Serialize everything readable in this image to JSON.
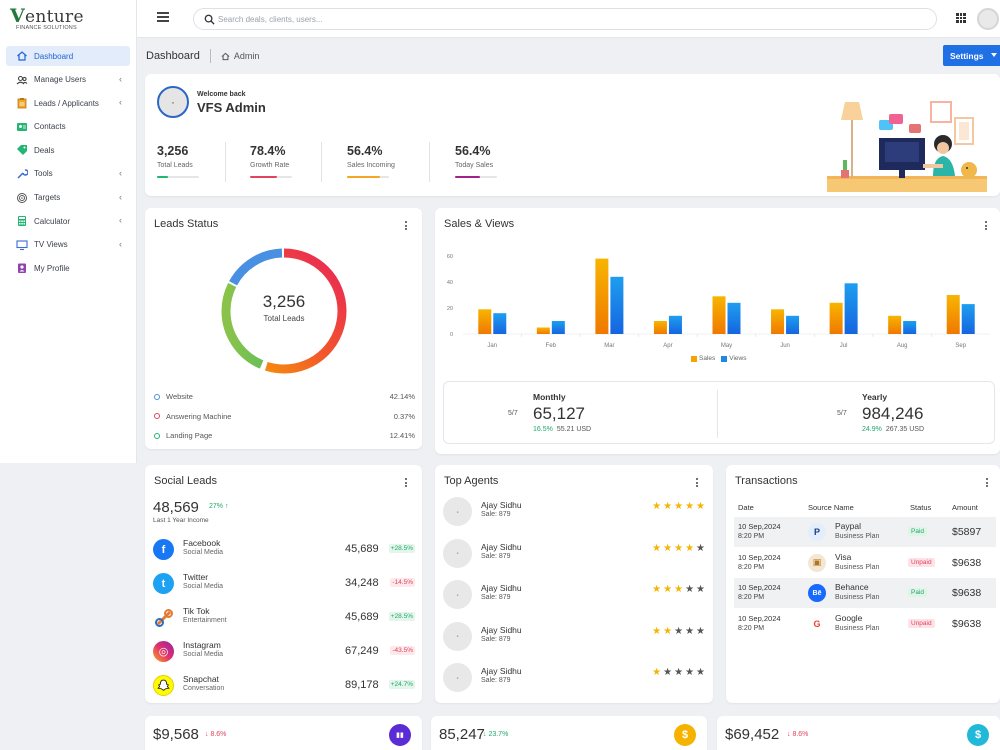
{
  "brand": {
    "logo_main": "enture",
    "logo_letter": "V",
    "logo_sub": "FINANCE SOLUTIONS"
  },
  "sidebar": {
    "items": [
      {
        "label": "Dashboard",
        "icon": "home-icon",
        "active": true,
        "chevron": false
      },
      {
        "label": "Manage Users",
        "icon": "users-icon",
        "active": false,
        "chevron": true
      },
      {
        "label": "Leads / Applicants",
        "icon": "clipboard-icon",
        "active": false,
        "chevron": true
      },
      {
        "label": "Contacts",
        "icon": "contact-card-icon",
        "active": false,
        "chevron": false
      },
      {
        "label": "Deals",
        "icon": "tag-icon",
        "active": false,
        "chevron": false
      },
      {
        "label": "Tools",
        "icon": "wrench-icon",
        "active": false,
        "chevron": true
      },
      {
        "label": "Targets",
        "icon": "target-icon",
        "active": false,
        "chevron": true
      },
      {
        "label": "Calculator",
        "icon": "calculator-icon",
        "active": false,
        "chevron": true
      },
      {
        "label": "TV Views",
        "icon": "monitor-icon",
        "active": false,
        "chevron": true
      },
      {
        "label": "My Profile",
        "icon": "profile-badge-icon",
        "active": false,
        "chevron": false
      }
    ]
  },
  "topbar": {
    "search_placeholder": "Search deals, clients, users..."
  },
  "breadcrumb": {
    "title": "Dashboard",
    "home": "Admin"
  },
  "settings_button": "Settings",
  "welcome": {
    "greeting": "Welcome back",
    "name": "VFS Admin",
    "stats": [
      {
        "value": "3,256",
        "label": "Total Leads",
        "color": "#22b573",
        "progress": 0.25
      },
      {
        "value": "78.4%",
        "label": "Growth Rate",
        "color": "#e2445c",
        "progress": 0.65
      },
      {
        "value": "56.4%",
        "label": "Sales Incoming",
        "color": "#f5a623",
        "progress": 0.78
      },
      {
        "value": "56.4%",
        "label": "Today Sales",
        "color": "#a3218a",
        "progress": 0.6
      }
    ]
  },
  "leads_status": {
    "title": "Leads Status",
    "total": "3,256",
    "total_label": "Total Leads",
    "legend": [
      {
        "name": "Website",
        "pct": "42.14%",
        "color": "#4a90e2"
      },
      {
        "name": "Answering Machine",
        "pct": "0.37%",
        "color": "#e2445c"
      },
      {
        "name": "Landing Page",
        "pct": "12.41%",
        "color": "#22b573"
      }
    ]
  },
  "sales_views": {
    "title": "Sales & Views",
    "monthly": {
      "label": "Monthly",
      "frac": "5/7",
      "value": "65,127",
      "pct": "16.5%",
      "usd": "55.21 USD"
    },
    "yearly": {
      "label": "Yearly",
      "frac": "5/7",
      "value": "984,246",
      "pct": "24.9%",
      "usd": "267.35 USD"
    }
  },
  "chart_data": {
    "type": "bar",
    "categories": [
      "Jan",
      "Feb",
      "Mar",
      "Apr",
      "May",
      "Jun",
      "Jul",
      "Aug",
      "Sep"
    ],
    "series": [
      {
        "name": "Sales",
        "values": [
          19,
          5,
          58,
          10,
          29,
          19,
          24,
          14,
          30
        ],
        "color": "#f5a300"
      },
      {
        "name": "Views",
        "values": [
          16,
          10,
          44,
          14,
          24,
          14,
          39,
          10,
          23
        ],
        "color": "#1e88e5"
      }
    ],
    "yticks": [
      "0",
      "20",
      "40",
      "60"
    ],
    "ylim": [
      0,
      60
    ],
    "legend": "bottom"
  },
  "social_leads": {
    "title": "Social Leads",
    "total": "48,569",
    "growth": "27%",
    "subtitle": "Last 1 Year Income",
    "rows": [
      {
        "name": "Facebook",
        "category": "Social Media",
        "value": "45,689",
        "change": "+28.5%",
        "dir": "up",
        "icon": "facebook-icon",
        "color": "#1877f2",
        "glyph": "f"
      },
      {
        "name": "Twitter",
        "category": "Social Media",
        "value": "34,248",
        "change": "-14.5%",
        "dir": "down",
        "icon": "twitter-icon",
        "color": "#1da1f2",
        "glyph": "t"
      },
      {
        "name": "Tik Tok",
        "category": "Entertainment",
        "value": "45,689",
        "change": "+28.5%",
        "dir": "up",
        "icon": "tiktok-icon",
        "color": "#ffffff",
        "glyph": ""
      },
      {
        "name": "Instagram",
        "category": "Social Media",
        "value": "67,249",
        "change": "-43.5%",
        "dir": "down",
        "icon": "instagram-icon",
        "color": "#e1306c",
        "glyph": "◎"
      },
      {
        "name": "Snapchat",
        "category": "Conversation",
        "value": "89,178",
        "change": "+24.7%",
        "dir": "up",
        "icon": "snapchat-icon",
        "color": "#fffc00",
        "glyph": ""
      }
    ]
  },
  "top_agents": {
    "title": "Top Agents",
    "agents": [
      {
        "name": "Ajay Sidhu",
        "sale": "Sale: 879",
        "rating": 5
      },
      {
        "name": "Ajay Sidhu",
        "sale": "Sale: 879",
        "rating": 4
      },
      {
        "name": "Ajay Sidhu",
        "sale": "Sale: 879",
        "rating": 3
      },
      {
        "name": "Ajay Sidhu",
        "sale": "Sale: 879",
        "rating": 2
      },
      {
        "name": "Ajay Sidhu",
        "sale": "Sale: 879",
        "rating": 1
      }
    ]
  },
  "transactions": {
    "title": "Transactions",
    "headers": [
      "Date",
      "Source Name",
      "Status",
      "Amount"
    ],
    "rows": [
      {
        "date": "10 Sep,2024",
        "time": "8:20 PM",
        "source": "Paypal",
        "plan": "Business Plan",
        "status": "Paid",
        "amount": "$5897",
        "icon": "paypal-icon"
      },
      {
        "date": "10 Sep,2024",
        "time": "8:20 PM",
        "source": "Visa",
        "plan": "Business Plan",
        "status": "Unpaid",
        "amount": "$9638",
        "icon": "visa-icon"
      },
      {
        "date": "10 Sep,2024",
        "time": "8:20 PM",
        "source": "Behance",
        "plan": "Business Plan",
        "status": "Paid",
        "amount": "$9638",
        "icon": "behance-icon"
      },
      {
        "date": "10 Sep,2024",
        "time": "8:20 PM",
        "source": "Google",
        "plan": "Business Plan",
        "status": "Unpaid",
        "amount": "$9638",
        "icon": "google-icon"
      }
    ]
  },
  "bottom_cards": [
    {
      "value": "$9,568",
      "change": "8.6%",
      "dir": "down",
      "color": "#5b2bd6",
      "icon": "bar-chart-icon"
    },
    {
      "value": "85,247",
      "change": "23.7%",
      "dir": "up",
      "color": "#f5b300",
      "icon": "dollar-icon"
    },
    {
      "value": "$69,452",
      "change": "8.6%",
      "dir": "down",
      "color": "#22b8d9",
      "icon": "dollar-slash-icon"
    }
  ]
}
